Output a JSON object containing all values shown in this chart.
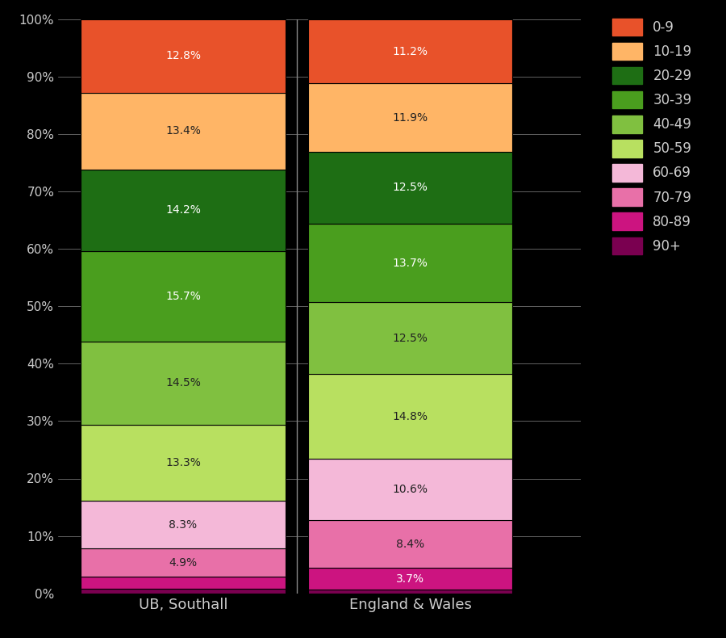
{
  "categories": [
    "UB, Southall",
    "England & Wales"
  ],
  "age_groups_bottom_to_top": [
    "90+",
    "80-89",
    "70-79",
    "60-69",
    "50-59",
    "40-49",
    "30-39",
    "20-29",
    "10-19",
    "0-9"
  ],
  "colors": {
    "0-9": "#e8522a",
    "10-19": "#ffb566",
    "20-29": "#1e6e14",
    "30-39": "#4a9e1e",
    "40-49": "#80c040",
    "50-59": "#b8e060",
    "60-69": "#f4b8d8",
    "70-79": "#e870a8",
    "80-89": "#cc1480",
    "90+": "#7a0050"
  },
  "southall": {
    "0-9": 12.8,
    "10-19": 13.4,
    "20-29": 14.2,
    "30-39": 15.7,
    "40-49": 14.5,
    "50-59": 13.3,
    "60-69": 8.3,
    "70-79": 4.9,
    "80-89": 2.1,
    "90+": 0.8
  },
  "england_wales": {
    "0-9": 11.2,
    "10-19": 11.9,
    "20-29": 12.5,
    "30-39": 13.7,
    "40-49": 12.5,
    "50-59": 14.8,
    "60-69": 10.6,
    "70-79": 8.4,
    "80-89": 3.7,
    "90+": 0.7
  },
  "label_min_pct": 3.5,
  "background_color": "#000000",
  "text_color": "#cccccc",
  "bar_edge_color": "#000000",
  "yticks": [
    0,
    10,
    20,
    30,
    40,
    50,
    60,
    70,
    80,
    90,
    100
  ],
  "legend_age_groups": [
    "0-9",
    "10-19",
    "20-29",
    "30-39",
    "40-49",
    "50-59",
    "60-69",
    "70-79",
    "80-89",
    "90+"
  ]
}
